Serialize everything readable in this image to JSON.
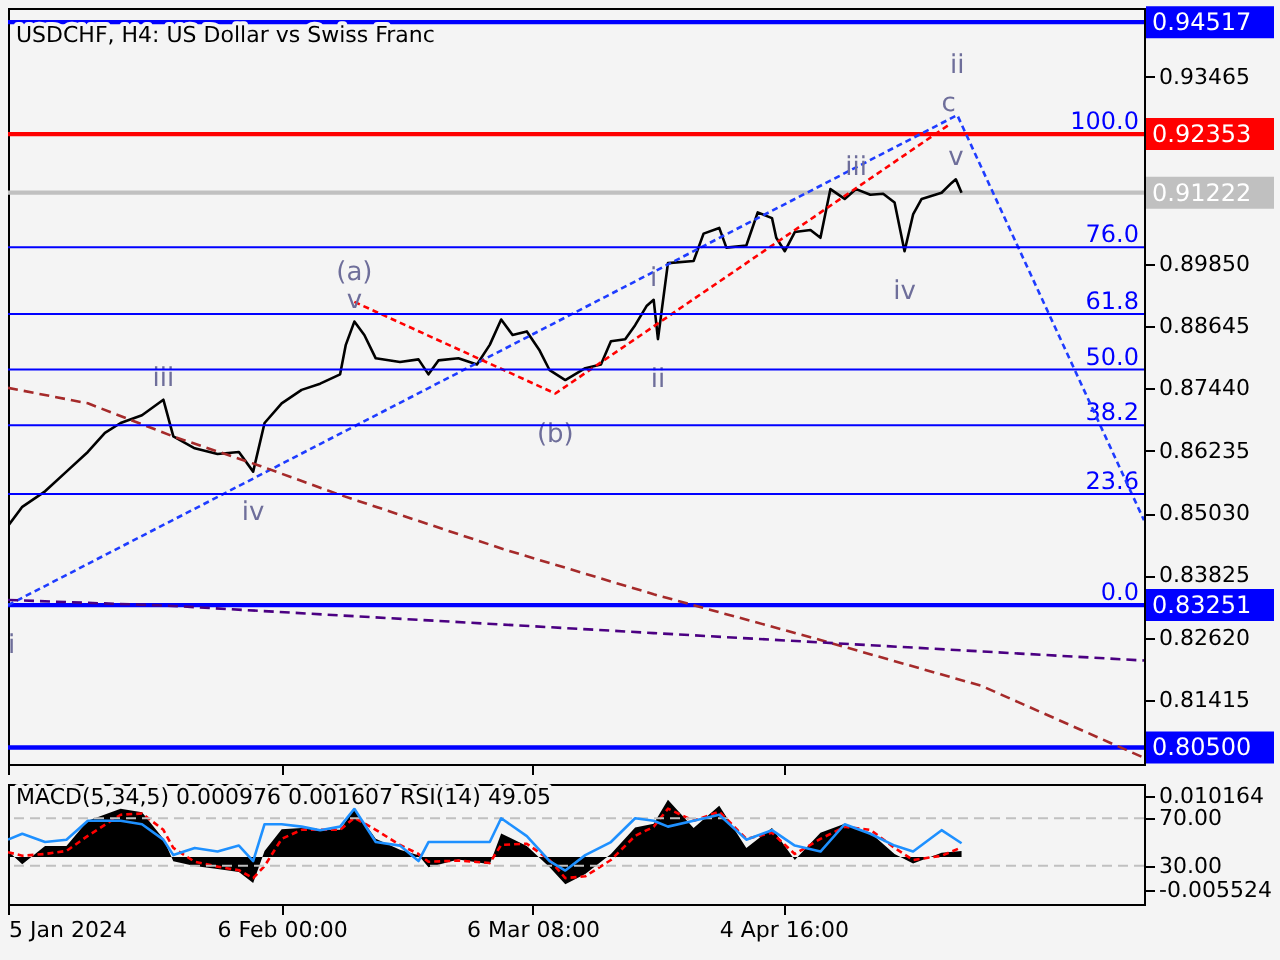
{
  "chart_data": [
    {
      "type": "line",
      "title": "USDCHF, H4:  US Dollar vs Swiss Franc",
      "grid": false,
      "tick_labels": "y",
      "x": [
        "2024-01-05T00:00",
        "2024-01-06T16:00",
        "2024-01-09T08:00",
        "2024-01-11T20:00",
        "2024-01-14T08:00",
        "2024-01-16T08:00",
        "2024-01-18T04:00",
        "2024-01-20T16:00",
        "2024-01-23T04:00",
        "2024-01-24T08:00",
        "2024-01-26T20:00",
        "2024-01-29T12:00",
        "2024-02-01T00:00",
        "2024-02-02T16:00",
        "2024-02-04T00:00",
        "2024-02-06T00:00",
        "2024-02-08T08:00",
        "2024-02-10T12:00",
        "2024-02-12T20:00",
        "2024-02-13T12:00",
        "2024-02-14T12:00",
        "2024-02-15T16:00",
        "2024-02-17T00:00",
        "2024-02-19T20:00",
        "2024-02-22T00:00",
        "2024-02-23T04:00",
        "2024-02-24T08:00",
        "2024-02-26T16:00",
        "2024-02-28T20:00",
        "2024-03-01T08:00",
        "2024-03-02T16:00",
        "2024-03-04T00:00",
        "2024-03-05T16:00",
        "2024-03-07T04:00",
        "2024-03-08T08:00",
        "2024-03-10T04:00",
        "2024-03-12T12:00",
        "2024-03-14T08:00",
        "2024-03-15T12:00",
        "2024-03-17T04:00",
        "2024-03-18T08:00",
        "2024-03-19T16:00",
        "2024-03-20T12:00",
        "2024-03-21T00:00",
        "2024-03-22T04:00",
        "2024-03-25T04:00",
        "2024-03-26T08:00",
        "2024-03-28T04:00",
        "2024-03-29T00:00",
        "2024-03-31T08:00",
        "2024-04-01T16:00",
        "2024-04-03T08:00",
        "2024-04-03T20:00",
        "2024-04-04T20:00",
        "2024-04-06T00:00",
        "2024-04-07T20:00",
        "2024-04-09T00:00",
        "2024-04-10T04:00",
        "2024-04-11T20:00",
        "2024-04-13T04:00",
        "2024-04-14T20:00",
        "2024-04-16T08:00",
        "2024-04-17T16:00",
        "2024-04-18T20:00",
        "2024-04-19T20:00",
        "2024-04-20T20:00",
        "2024-04-23T04:00",
        "2024-04-24T08:00",
        "2024-04-24T20:00",
        "2024-04-25T12:00"
      ],
      "xlim": [
        "2024-01-05T00:00",
        "2024-05-16T20:00"
      ],
      "xticks": [
        {
          "value": "2024-01-05T00:00",
          "label": null
        },
        {
          "value": "2024-02-06T00:00",
          "label": null
        },
        {
          "value": "2024-03-06T08:00",
          "label": null
        },
        {
          "value": "2024-04-04T16:00",
          "label": null
        }
      ],
      "ylim": [
        0.8018,
        0.9479
      ],
      "yticks": [
        0.93465,
        {
          "value": 0.8985,
          "label": "0.89850"
        },
        0.88645,
        {
          "value": 0.8744,
          "label": "0.87440"
        },
        0.86235,
        {
          "value": 0.8503,
          "label": "0.85030"
        },
        0.83825,
        {
          "value": 0.8262,
          "label": "0.82620"
        },
        0.81415
      ],
      "y2lim": [
        -33.74,
        126.77
      ],
      "y2ticks": [
        {
          "value": 100,
          "label": "100.0"
        },
        {
          "value": 76,
          "label": "76.0"
        },
        61.8,
        {
          "value": 50,
          "label": "50.0"
        },
        38.2,
        23.6,
        {
          "value": 0,
          "label": "0.0"
        }
      ],
      "series": [
        {
          "color": "#000000",
          "line_style": "solid",
          "values": [
            0.8478,
            0.8515,
            0.8545,
            0.8583,
            0.8621,
            0.8658,
            0.8677,
            0.8692,
            0.8722,
            0.8651,
            0.8628,
            0.8617,
            0.8621,
            0.8583,
            0.8677,
            0.8715,
            0.8741,
            0.8753,
            0.8771,
            0.8828,
            0.8873,
            0.8847,
            0.8802,
            0.8795,
            0.88,
            0.8771,
            0.8798,
            0.8802,
            0.879,
            0.8828,
            0.8877,
            0.8847,
            0.8854,
            0.8817,
            0.8779,
            0.876,
            0.8783,
            0.879,
            0.8835,
            0.8839,
            0.8866,
            0.8903,
            0.8915,
            0.8839,
            0.8986,
            0.899,
            0.9043,
            0.9054,
            0.9016,
            0.902,
            0.9084,
            0.9073,
            0.9035,
            0.9009,
            0.9046,
            0.905,
            0.9035,
            0.9129,
            0.911,
            0.9129,
            0.9118,
            0.912,
            0.9103,
            0.9009,
            0.908,
            0.911,
            0.9122,
            0.9141,
            0.9148,
            0.9122
          ]
        },
        {
          "color": "#1e3cff",
          "line_style": "dotted",
          "x": [
            "2024-01-05T00:00",
            "2024-04-25T00:00",
            "2024-05-16T20:00"
          ],
          "values": [
            0.8325,
            0.9272,
            0.8489
          ]
        },
        {
          "color": "#ff0000",
          "line_style": "dotted",
          "x": [
            "2024-02-14T12:00",
            "2024-03-09T00:00",
            "2024-04-24T00:00"
          ],
          "values": [
            0.8911,
            0.8734,
            0.9253
          ]
        },
        {
          "color": "#a52a2a",
          "line_style": "dashed",
          "x": [
            "2024-01-05T00:00",
            "2024-01-14T08:00",
            "2024-01-24T08:00",
            "2024-02-03T12:00",
            "2024-02-12T20:00",
            "2024-03-03T04:00",
            "2024-03-20T12:00",
            "2024-04-07T20:00",
            "2024-04-27T20:00",
            "2024-05-16T20:00"
          ],
          "values": [
            0.8745,
            0.8715,
            0.8651,
            0.8594,
            0.8538,
            0.8432,
            0.8346,
            0.8263,
            0.8169,
            0.803
          ]
        },
        {
          "color": "#4b0082",
          "line_style": "dashed",
          "x": [
            "2024-01-05T00:00",
            "2024-01-23T16:00",
            "2024-03-20T12:00",
            "2024-05-16T20:00"
          ],
          "values": [
            0.8335,
            0.8324,
            0.8271,
            0.8218
          ]
        }
      ],
      "ref_lines": [
        {
          "axis": "y",
          "value": 0.94517,
          "label": "0.94517",
          "color": "#0000ff"
        },
        {
          "axis": "y",
          "value": 0.92353,
          "label": "0.92353",
          "color": "#ff0000"
        },
        {
          "axis": "y",
          "value": 0.91222,
          "label": "0.91222",
          "color": "#c0c0c0"
        },
        {
          "axis": "y",
          "value": 0.83251,
          "label": "0.83251",
          "color": "#0000ff"
        },
        {
          "axis": "y",
          "value": 0.805,
          "label": "0.80500",
          "color": "#0000ff"
        },
        {
          "axis": "y2",
          "value": 76,
          "color": "#0000ff"
        },
        {
          "axis": "y2",
          "value": 61.8,
          "color": "#0000ff"
        },
        {
          "axis": "y2",
          "value": 50,
          "color": "#0000ff"
        },
        {
          "axis": "y2",
          "value": 38.2,
          "color": "#0000ff"
        },
        {
          "axis": "y2",
          "value": 23.6,
          "color": "#0000ff"
        }
      ],
      "annotations": [
        {
          "text": "i",
          "x": "2024-01-05T00:00",
          "y": 0.8325
        },
        {
          "text": "iii",
          "x": "2024-01-23T04:00",
          "y": 0.8722
        },
        {
          "text": "iv",
          "x": "2024-02-02T16:00",
          "y": 0.8583
        },
        {
          "text": "v",
          "x": "2024-02-14T12:00",
          "y": 0.8873
        },
        {
          "text": "(a)",
          "x": "2024-02-14T12:00",
          "y": 0.8873
        },
        {
          "text": "(b)",
          "x": "2024-03-09T00:00",
          "y": 0.8734
        },
        {
          "text": "i",
          "x": "2024-03-20T12:00",
          "y": 0.8915
        },
        {
          "text": "ii",
          "x": "2024-03-21T00:00",
          "y": 0.8839
        },
        {
          "text": "iii",
          "x": "2024-04-13T04:00",
          "y": 0.9129
        },
        {
          "text": "iv",
          "x": "2024-04-18T20:00",
          "y": 0.9009
        },
        {
          "text": "v",
          "x": "2024-04-24T20:00",
          "y": 0.9148
        },
        {
          "text": "c",
          "x": "2024-04-24T00:00",
          "y": 0.9253
        },
        {
          "text": "ii",
          "x": "2024-04-25T00:00",
          "y": 0.9272
        }
      ]
    },
    {
      "type": "line",
      "title": "MACD(5,34,5) 0.000976 0.001607 RSI(14) 49.05",
      "grid": false,
      "x": [
        "2024-01-05T00:00",
        "2024-01-06T16:00",
        "2024-01-09T08:00",
        "2024-01-11T20:00",
        "2024-01-14T08:00",
        "2024-01-18T04:00",
        "2024-01-20T16:00",
        "2024-01-23T04:00",
        "2024-01-24T08:00",
        "2024-01-26T20:00",
        "2024-01-29T12:00",
        "2024-02-01T00:00",
        "2024-02-02T16:00",
        "2024-02-04T00:00",
        "2024-02-06T00:00",
        "2024-02-08T08:00",
        "2024-02-10T12:00",
        "2024-02-12T20:00",
        "2024-02-14T12:00",
        "2024-02-17T00:00",
        "2024-02-19T20:00",
        "2024-02-22T00:00",
        "2024-02-23T04:00",
        "2024-02-26T16:00",
        "2024-03-01T08:00",
        "2024-03-02T16:00",
        "2024-03-05T16:00",
        "2024-03-08T08:00",
        "2024-03-10T04:00",
        "2024-03-12T12:00",
        "2024-03-15T12:00",
        "2024-03-18T08:00",
        "2024-03-20T12:00",
        "2024-03-22T04:00",
        "2024-03-25T04:00",
        "2024-03-28T04:00",
        "2024-03-31T08:00",
        "2024-04-03T08:00",
        "2024-04-06T00:00",
        "2024-04-09T00:00",
        "2024-04-11T20:00",
        "2024-04-14T20:00",
        "2024-04-17T16:00",
        "2024-04-19T20:00",
        "2024-04-23T04:00",
        "2024-04-25T12:00"
      ],
      "xlim": [
        "2024-01-05T00:00",
        "2024-05-16T20:00"
      ],
      "xticks": [
        {
          "value": "2024-01-05T00:00",
          "label": "5 Jan 2024"
        },
        {
          "value": "2024-02-06T00:00",
          "label": "6 Feb 00:00"
        },
        {
          "value": "2024-03-06T08:00",
          "label": "6 Mar 08:00"
        },
        {
          "value": "2024-04-04T16:00",
          "label": "4 Apr 16:00"
        }
      ],
      "ylim": [
        -0.00779,
        0.01209
      ],
      "yticks": [
        0.010164,
        -0.005524
      ],
      "y2lim": [
        -2.2,
        98.9
      ],
      "y2ticks": [
        {
          "value": 70,
          "label": "70.00"
        },
        {
          "value": 30,
          "label": "30.00"
        }
      ],
      "series": [
        {
          "type": "area",
          "color": "#000000",
          "values": [
            0.001,
            -0.0012,
            0.0018,
            0.0018,
            0.006,
            0.008,
            0.0074,
            0.003,
            -0.0007,
            -0.0015,
            -0.002,
            -0.0025,
            -0.0043,
            0.001,
            0.0046,
            0.0048,
            0.0045,
            0.0045,
            0.008,
            0.003,
            0.0012,
            0.0003,
            -0.0017,
            -0.0004,
            -0.0012,
            0.0039,
            0.0018,
            -0.0017,
            -0.0045,
            -0.0028,
            0.0005,
            0.0049,
            0.0055,
            0.0095,
            0.0048,
            0.0085,
            0.0015,
            0.0048,
            -0.0005,
            0.004,
            0.0055,
            0.004,
            0.0005,
            -0.0011,
            0.0007,
            0.001
          ]
        },
        {
          "type": "line",
          "color": "#ff0000",
          "line_style": "dotted",
          "values": [
            0.0008,
            0.0002,
            0.0005,
            0.001,
            0.0035,
            0.007,
            0.0072,
            0.0045,
            0.0015,
            -0.0008,
            -0.0016,
            -0.0022,
            -0.0035,
            -0.0015,
            0.003,
            0.0045,
            0.0045,
            0.0045,
            0.0065,
            0.0045,
            0.002,
            0.0005,
            -0.0008,
            -0.0006,
            -0.001,
            0.002,
            0.0022,
            -0.0005,
            -0.0035,
            -0.0032,
            -0.0005,
            0.0035,
            0.005,
            0.008,
            0.006,
            0.0075,
            0.003,
            0.004,
            0.0005,
            0.003,
            0.005,
            0.0045,
            0.0015,
            -0.0005,
            0.0002,
            0.0016
          ]
        },
        {
          "type": "line",
          "color": "#1e90ff",
          "line_style": "solid",
          "axis": "y2",
          "values": [
            52,
            57,
            50,
            52,
            68,
            68,
            65,
            52,
            39,
            45,
            42,
            47,
            34,
            65,
            65,
            63,
            60,
            63,
            78,
            50,
            47,
            34,
            50,
            50,
            50,
            70,
            55,
            34,
            26,
            39,
            50,
            70,
            68,
            63,
            68,
            73,
            52,
            60,
            47,
            42,
            65,
            57,
            47,
            42,
            60,
            49
          ]
        }
      ],
      "ref_lines": [
        {
          "axis": "y2",
          "value": 70,
          "color": "#c0c0c0",
          "line_style": "dashed"
        },
        {
          "axis": "y2",
          "value": 30,
          "color": "#c0c0c0",
          "line_style": "dashed"
        }
      ]
    }
  ]
}
